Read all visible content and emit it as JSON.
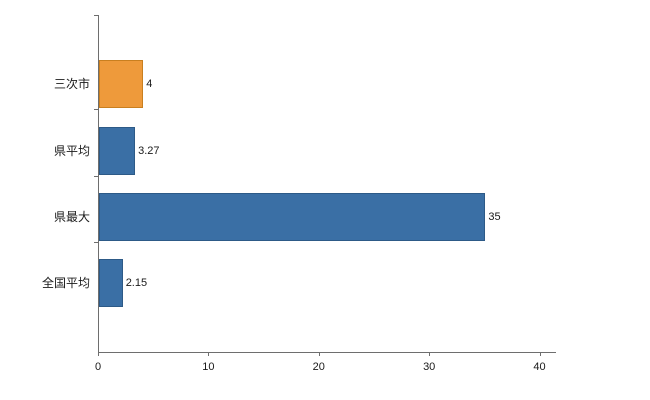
{
  "chart_data": {
    "type": "bar",
    "orientation": "horizontal",
    "title": "",
    "categories": [
      "三次市",
      "県平均",
      "県最大",
      "全国平均"
    ],
    "values": [
      4,
      3.27,
      35,
      2.15
    ],
    "value_labels": [
      "4",
      "3.27",
      "35",
      "2.15"
    ],
    "bar_colors": [
      "#ee9a3b",
      "#3a6fa5",
      "#3a6fa5",
      "#3a6fa5"
    ],
    "bar_border_colors": [
      "#c97f1f",
      "#2d5a87",
      "#2d5a87",
      "#2d5a87"
    ],
    "xticks": [
      0,
      10,
      20,
      30,
      40
    ],
    "xlim": [
      0,
      41.4
    ],
    "grid": false,
    "legend": false
  }
}
